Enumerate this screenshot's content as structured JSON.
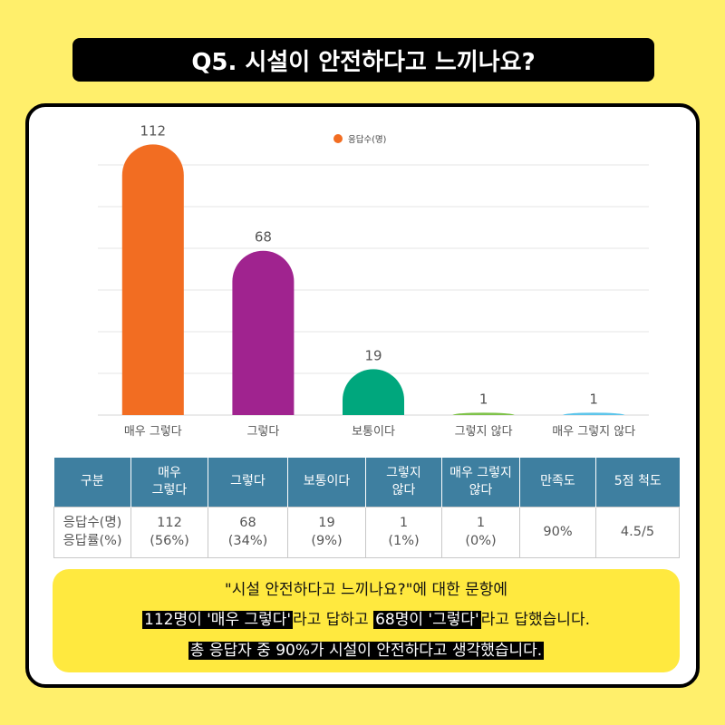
{
  "title": "Q5. 시설이 안전하다고 느끼나요?",
  "chart_data": {
    "type": "bar",
    "categories": [
      "매우 그렇다",
      "그렇다",
      "보통이다",
      "그렇지 않다",
      "매우 그렇지 않다"
    ],
    "series": [
      {
        "name": "응답수(명)",
        "values": [
          112,
          68,
          19,
          1,
          1
        ]
      }
    ],
    "data_labels": [
      "112",
      "68",
      "19",
      "1",
      "1"
    ],
    "bar_colors": [
      "#f26d22",
      "#a0238f",
      "#00a77d",
      "#7fc24a",
      "#5ec5ea"
    ],
    "legend_color": "#f26d22",
    "legend_position": "top-center",
    "ylim": [
      0,
      120
    ],
    "grid": true
  },
  "table": {
    "headers": [
      "구분",
      "매우\n그렇다",
      "그렇다",
      "보통이다",
      "그렇지\n않다",
      "매우 그렇지\n않다",
      "만족도",
      "5점 척도"
    ],
    "row_label": [
      "응답수(명)",
      "응답률(%)"
    ],
    "cells": [
      [
        "112",
        "(56%)"
      ],
      [
        "68",
        "(34%)"
      ],
      [
        "19",
        "(9%)"
      ],
      [
        "1",
        "(1%)"
      ],
      [
        "1",
        "(0%)"
      ]
    ],
    "satisfaction": "90%",
    "scale": "4.5/5"
  },
  "summary": {
    "line1": "\"시설 안전하다고 느끼나요?\"에 대한 문항에",
    "line2_a": "112명이 '매우 그렇다'",
    "line2_b": "라고 답하고 ",
    "line2_c": "68명이 '그렇다'",
    "line2_d": "라고 답했습니다.",
    "line3": "총 응답자 중 90%가 시설이 안전하다고 생각했습니다."
  }
}
